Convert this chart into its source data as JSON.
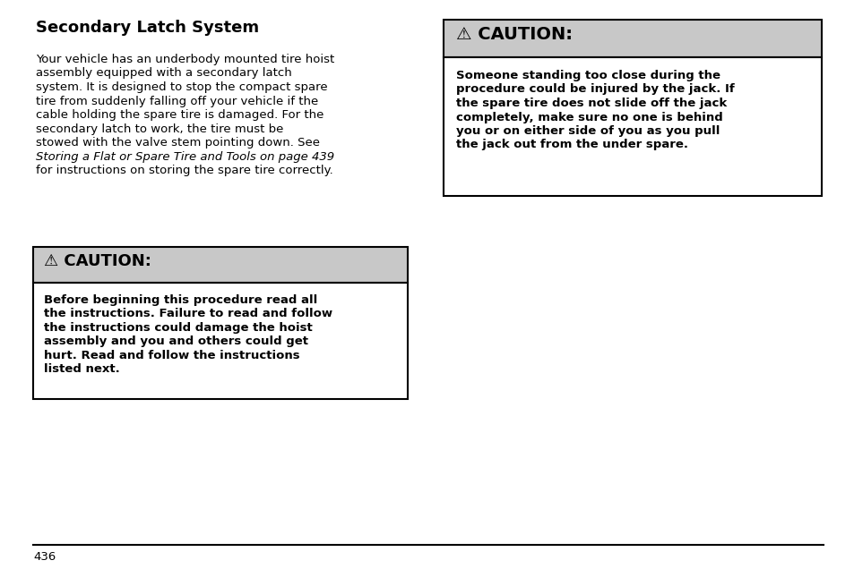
{
  "bg_color": "#ffffff",
  "title": "Secondary Latch System",
  "body_lines": [
    {
      "text": "Your vehicle has an underbody mounted tire hoist",
      "italic": false
    },
    {
      "text": "assembly equipped with a secondary latch",
      "italic": false
    },
    {
      "text": "system. It is designed to stop the compact spare",
      "italic": false
    },
    {
      "text": "tire from suddenly falling off your vehicle if the",
      "italic": false
    },
    {
      "text": "cable holding the spare tire is damaged. For the",
      "italic": false
    },
    {
      "text": "secondary latch to work, the tire must be",
      "italic": false
    },
    {
      "text": "stowed with the valve stem pointing down. See",
      "italic": false
    },
    {
      "text": "Storing a Flat or Spare Tire and Tools on page 439",
      "italic": true
    },
    {
      "text": "for instructions on storing the spare tire correctly.",
      "italic": false
    }
  ],
  "caution_header": "⚠ CAUTION:",
  "caution_box1_text": [
    "Before beginning this procedure read all",
    "the instructions. Failure to read and follow",
    "the instructions could damage the hoist",
    "assembly and you and others could get",
    "hurt. Read and follow the instructions",
    "listed next."
  ],
  "caution_box2_text": [
    "Someone standing too close during the",
    "procedure could be injured by the jack. If",
    "the spare tire does not slide off the jack",
    "completely, make sure no one is behind",
    "you or on either side of you as you pull",
    "the jack out from the under spare."
  ],
  "page_number": "436",
  "box_bg": "#c8c8c8",
  "box_border": "#000000",
  "text_color": "#000000",
  "title_fontsize": 13,
  "body_fontsize": 9.5,
  "caution_header_fontsize": 13,
  "caution_body_fontsize": 9.5,
  "page_fontsize": 9.5,
  "fig_width": 9.54,
  "fig_height": 6.36,
  "dpi": 100
}
